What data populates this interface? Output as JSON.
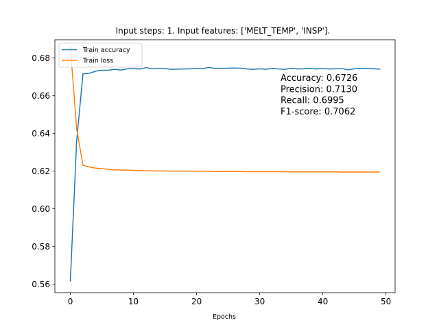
{
  "chart_data": {
    "type": "line",
    "title": "Input steps: 1. Input features: ['MELT_TEMP', 'INSP'].",
    "xlabel": "Epochs",
    "ylabel": "",
    "xlim": [
      -2.45,
      51.45
    ],
    "ylim": [
      0.5555,
      0.6897
    ],
    "xticks": [
      0,
      10,
      20,
      30,
      40,
      50
    ],
    "yticks": [
      0.56,
      0.58,
      0.6,
      0.62,
      0.64,
      0.66,
      0.68
    ],
    "xtick_labels": [
      "0",
      "10",
      "20",
      "30",
      "40",
      "50"
    ],
    "ytick_labels": [
      "0.56",
      "0.58",
      "0.60",
      "0.62",
      "0.64",
      "0.66",
      "0.68"
    ],
    "grid": false,
    "legend_position": "upper-left",
    "series": [
      {
        "name": "Train accuracy",
        "color": "#1f77b4",
        "values": [
          0.5617,
          0.636,
          0.6716,
          0.6719,
          0.673,
          0.6735,
          0.6735,
          0.674,
          0.6736,
          0.6743,
          0.6744,
          0.6742,
          0.6749,
          0.6743,
          0.6744,
          0.6744,
          0.674,
          0.6741,
          0.6742,
          0.6743,
          0.6744,
          0.6744,
          0.675,
          0.6744,
          0.6745,
          0.6746,
          0.6747,
          0.6746,
          0.6742,
          0.674,
          0.6743,
          0.674,
          0.6745,
          0.6742,
          0.674,
          0.6746,
          0.6742,
          0.6743,
          0.6745,
          0.6742,
          0.6744,
          0.6742,
          0.6743,
          0.6744,
          0.6738,
          0.6743,
          0.6745,
          0.6744,
          0.6743,
          0.6741
        ]
      },
      {
        "name": "Train loss",
        "color": "#ff7f0e",
        "values": [
          0.686,
          0.6425,
          0.6231,
          0.6222,
          0.6216,
          0.6213,
          0.621,
          0.6207,
          0.6206,
          0.6205,
          0.6204,
          0.6203,
          0.6202,
          0.6201,
          0.6201,
          0.6201,
          0.62,
          0.62,
          0.62,
          0.6199,
          0.6199,
          0.6199,
          0.6199,
          0.6198,
          0.6198,
          0.6198,
          0.6198,
          0.6198,
          0.6197,
          0.6197,
          0.6197,
          0.6197,
          0.6197,
          0.6197,
          0.6197,
          0.6196,
          0.6196,
          0.6196,
          0.6196,
          0.6196,
          0.6196,
          0.6196,
          0.6196,
          0.6195,
          0.6195,
          0.6195,
          0.6195,
          0.6195,
          0.6195,
          0.6195
        ]
      }
    ],
    "annotations": [
      "Accuracy: 0.6726",
      "Precision: 0.7130",
      "Recall: 0.6995",
      "F1-score: 0.7062"
    ]
  }
}
